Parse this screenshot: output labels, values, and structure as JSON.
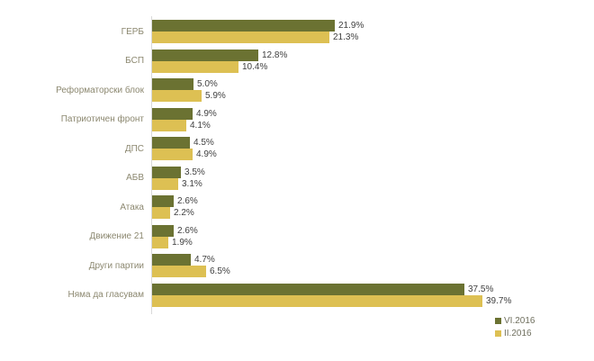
{
  "chart_data": {
    "type": "bar",
    "orientation": "horizontal",
    "title": "",
    "categories": [
      "ГЕРБ",
      "БСП",
      "Реформаторски блок",
      "Патриотичен фронт",
      "ДПС",
      "АБВ",
      "Атака",
      "Движение 21",
      "Други партии",
      "Няма да гласувам"
    ],
    "series": [
      {
        "name": "VI.2016",
        "color": "#6b7232",
        "values": [
          21.9,
          12.8,
          5.0,
          4.9,
          4.5,
          3.5,
          2.6,
          2.6,
          4.7,
          37.5
        ]
      },
      {
        "name": "II.2016",
        "color": "#ddc053",
        "values": [
          21.3,
          10.4,
          5.9,
          4.1,
          4.9,
          3.1,
          2.2,
          1.9,
          6.5,
          39.7
        ]
      }
    ],
    "value_suffix": "%",
    "value_decimals": 1,
    "xlim": [
      0,
      40
    ],
    "grid": false,
    "legend_position": "bottom-right",
    "colors": {
      "axis_line": "#d9d9d9",
      "category_label": "#8c8870",
      "value_label": "#3f3f3f",
      "legend_text": "#6f6f5e",
      "background": "#ffffff"
    }
  }
}
